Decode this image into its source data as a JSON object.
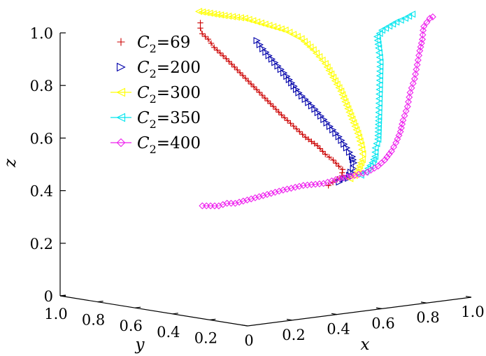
{
  "chart_data": {
    "type": "scatter",
    "projection": "3d",
    "title": "",
    "xlabel": "x",
    "ylabel": "y",
    "zlabel": "z",
    "xlim": [
      0,
      1
    ],
    "ylim": [
      0,
      1
    ],
    "zlim": [
      0,
      1
    ],
    "x_ticks": [
      "0",
      "0.2",
      "0.4",
      "0.6",
      "0.8",
      "1.0"
    ],
    "y_ticks": [
      "1.0",
      "0.8",
      "0.6",
      "0.4",
      "0.2"
    ],
    "z_ticks": [
      "0",
      "0.2",
      "0.4",
      "0.6",
      "0.8",
      "1.0"
    ],
    "grid": false,
    "legend_position": "top-left",
    "series": [
      {
        "label_var": "C",
        "label_sub": "2",
        "label_eq": "=",
        "label_val": "69",
        "marker": "plus",
        "color": "#cc0000",
        "points": [
          [
            0.42,
            0.07,
            0.48
          ],
          [
            0.44,
            0.07,
            0.49
          ],
          [
            0.46,
            0.07,
            0.5
          ],
          [
            0.48,
            0.07,
            0.51
          ],
          [
            0.49,
            0.08,
            0.52
          ],
          [
            0.5,
            0.09,
            0.53
          ],
          [
            0.5,
            0.11,
            0.54
          ],
          [
            0.5,
            0.14,
            0.56
          ],
          [
            0.49,
            0.17,
            0.58
          ],
          [
            0.48,
            0.2,
            0.61
          ],
          [
            0.46,
            0.24,
            0.64
          ],
          [
            0.44,
            0.28,
            0.68
          ],
          [
            0.42,
            0.32,
            0.72
          ],
          [
            0.4,
            0.37,
            0.77
          ],
          [
            0.38,
            0.42,
            0.82
          ],
          [
            0.36,
            0.47,
            0.87
          ],
          [
            0.34,
            0.52,
            0.92
          ],
          [
            0.32,
            0.56,
            0.96
          ],
          [
            0.31,
            0.58,
            0.99
          ],
          [
            0.3,
            0.6,
            1.01
          ],
          [
            0.3,
            0.61,
            1.03
          ],
          [
            0.3,
            0.61,
            1.05
          ]
        ]
      },
      {
        "label_var": "C",
        "label_sub": "2",
        "label_eq": "=",
        "label_val": "200",
        "marker": "triangle-right",
        "color": "#0000aa",
        "points": [
          [
            0.46,
            0.06,
            0.49
          ],
          [
            0.48,
            0.06,
            0.5
          ],
          [
            0.5,
            0.06,
            0.5
          ],
          [
            0.52,
            0.07,
            0.52
          ],
          [
            0.54,
            0.08,
            0.53
          ],
          [
            0.55,
            0.09,
            0.55
          ],
          [
            0.56,
            0.11,
            0.57
          ],
          [
            0.56,
            0.14,
            0.6
          ],
          [
            0.55,
            0.17,
            0.64
          ],
          [
            0.53,
            0.21,
            0.69
          ],
          [
            0.51,
            0.25,
            0.74
          ],
          [
            0.48,
            0.3,
            0.8
          ],
          [
            0.46,
            0.34,
            0.86
          ],
          [
            0.44,
            0.38,
            0.91
          ],
          [
            0.42,
            0.42,
            0.96
          ],
          [
            0.41,
            0.44,
            0.99
          ]
        ]
      },
      {
        "label_var": "C",
        "label_sub": "2",
        "label_eq": "=",
        "label_val": "300",
        "marker": "triangle-left",
        "color": "#ffff00",
        "points": [
          [
            0.5,
            0.05,
            0.5
          ],
          [
            0.52,
            0.05,
            0.51
          ],
          [
            0.54,
            0.06,
            0.52
          ],
          [
            0.56,
            0.07,
            0.54
          ],
          [
            0.58,
            0.08,
            0.56
          ],
          [
            0.59,
            0.09,
            0.58
          ],
          [
            0.6,
            0.11,
            0.61
          ],
          [
            0.61,
            0.14,
            0.65
          ],
          [
            0.61,
            0.17,
            0.7
          ],
          [
            0.61,
            0.2,
            0.75
          ],
          [
            0.61,
            0.23,
            0.8
          ],
          [
            0.6,
            0.26,
            0.85
          ],
          [
            0.59,
            0.29,
            0.9
          ],
          [
            0.57,
            0.33,
            0.95
          ],
          [
            0.55,
            0.37,
            0.99
          ],
          [
            0.52,
            0.42,
            1.02
          ],
          [
            0.48,
            0.48,
            1.04
          ],
          [
            0.44,
            0.54,
            1.06
          ],
          [
            0.39,
            0.59,
            1.07
          ],
          [
            0.35,
            0.62,
            1.08
          ],
          [
            0.31,
            0.63,
            1.09
          ]
        ]
      },
      {
        "label_var": "C",
        "label_sub": "2",
        "label_eq": "=",
        "label_val": "350",
        "marker": "triangle-left",
        "color": "#00e5ee",
        "points": [
          [
            0.54,
            0.04,
            0.51
          ],
          [
            0.56,
            0.04,
            0.52
          ],
          [
            0.58,
            0.05,
            0.53
          ],
          [
            0.6,
            0.05,
            0.55
          ],
          [
            0.62,
            0.06,
            0.57
          ],
          [
            0.63,
            0.07,
            0.6
          ],
          [
            0.65,
            0.08,
            0.63
          ],
          [
            0.66,
            0.09,
            0.67
          ],
          [
            0.67,
            0.1,
            0.71
          ],
          [
            0.68,
            0.11,
            0.76
          ],
          [
            0.69,
            0.12,
            0.81
          ],
          [
            0.7,
            0.13,
            0.86
          ],
          [
            0.71,
            0.14,
            0.91
          ],
          [
            0.72,
            0.16,
            0.96
          ],
          [
            0.73,
            0.18,
            1.0
          ],
          [
            0.76,
            0.19,
            1.02
          ],
          [
            0.8,
            0.2,
            1.03
          ],
          [
            0.84,
            0.21,
            1.04
          ],
          [
            0.88,
            0.21,
            1.05
          ],
          [
            0.92,
            0.22,
            1.06
          ]
        ]
      },
      {
        "label_var": "C",
        "label_sub": "2",
        "label_eq": "=",
        "label_val": "400",
        "marker": "diamond",
        "color": "#ee22ee",
        "points": [
          [
            0.2,
            0.48,
            0.38
          ],
          [
            0.22,
            0.46,
            0.38
          ],
          [
            0.24,
            0.44,
            0.38
          ],
          [
            0.26,
            0.42,
            0.39
          ],
          [
            0.28,
            0.4,
            0.39
          ],
          [
            0.32,
            0.32,
            0.42
          ],
          [
            0.36,
            0.24,
            0.45
          ],
          [
            0.4,
            0.18,
            0.47
          ],
          [
            0.44,
            0.12,
            0.48
          ],
          [
            0.48,
            0.08,
            0.5
          ],
          [
            0.52,
            0.05,
            0.51
          ],
          [
            0.56,
            0.03,
            0.52
          ],
          [
            0.6,
            0.02,
            0.54
          ],
          [
            0.63,
            0.02,
            0.56
          ],
          [
            0.66,
            0.02,
            0.59
          ],
          [
            0.68,
            0.02,
            0.62
          ],
          [
            0.7,
            0.02,
            0.66
          ],
          [
            0.72,
            0.03,
            0.7
          ],
          [
            0.74,
            0.03,
            0.75
          ],
          [
            0.76,
            0.04,
            0.8
          ],
          [
            0.78,
            0.04,
            0.85
          ],
          [
            0.8,
            0.05,
            0.9
          ],
          [
            0.82,
            0.06,
            0.95
          ],
          [
            0.84,
            0.07,
            0.99
          ],
          [
            0.86,
            0.09,
            1.02
          ],
          [
            0.88,
            0.11,
            1.03
          ],
          [
            0.91,
            0.13,
            1.04
          ],
          [
            0.94,
            0.15,
            1.05
          ],
          [
            0.97,
            0.17,
            1.05
          ]
        ]
      }
    ]
  }
}
